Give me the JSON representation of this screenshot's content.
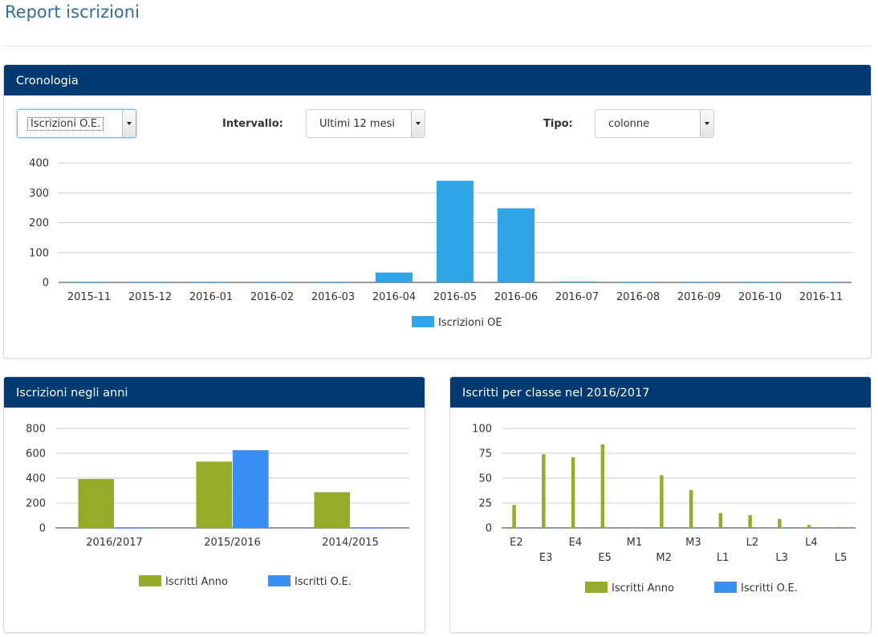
{
  "page": {
    "title": "Report iscrizioni"
  },
  "colors": {
    "header_bg": "#003a70",
    "blue": "#2fa4e7",
    "blue2": "#3a8ff5",
    "green": "#95ac2b"
  },
  "cronologia": {
    "title": "Cronologia",
    "controls": {
      "grafico_value": "Iscrizioni O.E.",
      "intervallo_label": "Intervallo:",
      "intervallo_value": "Ultimi 12 mesi",
      "tipo_label": "Tipo:",
      "tipo_value": "colonne"
    }
  },
  "anni": {
    "title": "Iscrizioni negli anni"
  },
  "classe": {
    "title": "Iscritti per classe nel 2016/2017"
  },
  "chart_data": [
    {
      "id": "cronologia",
      "type": "bar",
      "categories": [
        "2015-11",
        "2015-12",
        "2016-01",
        "2016-02",
        "2016-03",
        "2016-04",
        "2016-05",
        "2016-06",
        "2016-07",
        "2016-08",
        "2016-09",
        "2016-10",
        "2016-11"
      ],
      "series": [
        {
          "name": "Iscrizioni OE",
          "color": "#2fa4e7",
          "values": [
            0,
            0,
            0,
            0,
            0,
            33,
            340,
            248,
            3,
            0,
            0,
            0,
            0
          ]
        }
      ],
      "ylim": [
        0,
        400
      ],
      "yticks": [
        0,
        100,
        200,
        300,
        400
      ],
      "grid": true,
      "legend": "bottom"
    },
    {
      "id": "anni",
      "type": "bar",
      "categories": [
        "2016/2017",
        "2015/2016",
        "2014/2015"
      ],
      "series": [
        {
          "name": "Iscritti Anno",
          "color": "#95ac2b",
          "values": [
            393,
            533,
            287
          ]
        },
        {
          "name": "Iscritti O.E.",
          "color": "#3a8ff5",
          "values": [
            0,
            625,
            0
          ]
        }
      ],
      "ylim": [
        0,
        800
      ],
      "yticks": [
        0,
        200,
        400,
        600,
        800
      ],
      "grid": true,
      "legend": "bottom"
    },
    {
      "id": "classe",
      "type": "bar",
      "categories": [
        "E2",
        "E3",
        "E4",
        "E5",
        "M1",
        "M2",
        "M3",
        "L1",
        "L2",
        "L3",
        "L4",
        "L5"
      ],
      "series": [
        {
          "name": "Iscritti Anno",
          "color": "#95ac2b",
          "values": [
            23,
            74,
            71,
            84,
            0,
            53,
            38,
            15,
            13,
            9,
            3,
            1
          ]
        },
        {
          "name": "Iscritti O.E.",
          "color": "#3a8ff5",
          "values": [
            0,
            0,
            0,
            0,
            0,
            0,
            0,
            0,
            0,
            0,
            0,
            0
          ]
        }
      ],
      "ylim": [
        0,
        100
      ],
      "yticks": [
        0,
        25,
        50,
        75,
        100
      ],
      "grid": true,
      "legend": "bottom"
    }
  ]
}
